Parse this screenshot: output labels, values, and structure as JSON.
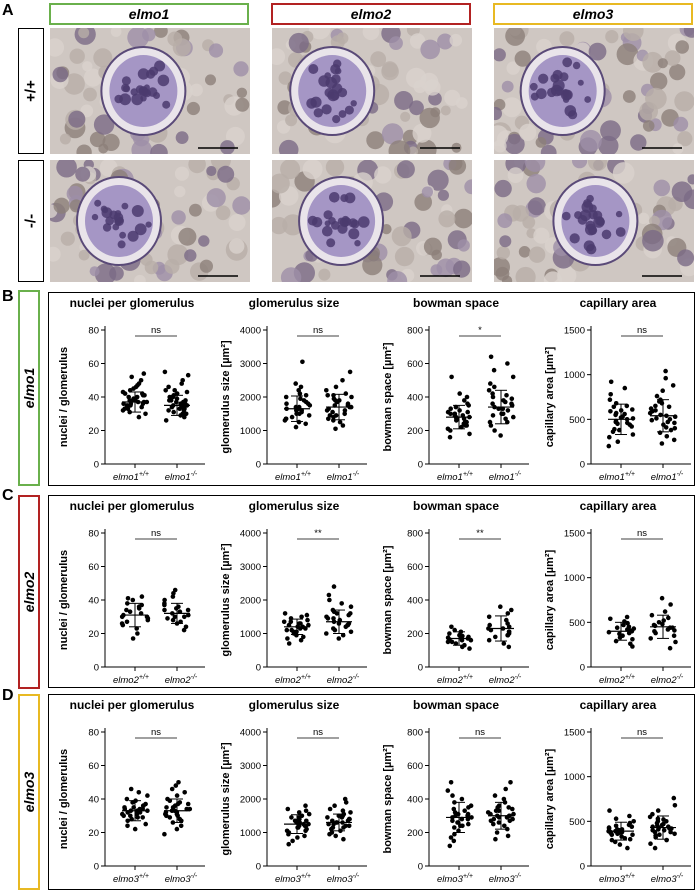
{
  "panel_labels": [
    "A",
    "B",
    "C",
    "D"
  ],
  "genes": [
    {
      "name": "elmo1",
      "color": "#6ab04c"
    },
    {
      "name": "elmo2",
      "color": "#b22222"
    },
    {
      "name": "elmo3",
      "color": "#e8b923"
    }
  ],
  "genotypes": [
    "+/+",
    "-/-"
  ],
  "chart_titles": [
    "nuclei per glomerulus",
    "glomerulus size",
    "bowman space",
    "capillary area"
  ],
  "chart_data": [
    {
      "type": "scatter",
      "gene": "elmo1",
      "title": "nuclei per glomerulus",
      "ylabel": "nuclei / glomerulus",
      "ylim": [
        0,
        80
      ],
      "yticks": [
        0,
        20,
        40,
        60,
        80
      ],
      "sig": "ns",
      "categories": [
        {
          "label": "elmo1",
          "sup": "+/+"
        },
        {
          "label": "elmo1",
          "sup": "-/-"
        }
      ],
      "series": [
        {
          "mean": 37,
          "sd": 6,
          "values": [
            28,
            30,
            31,
            33,
            33,
            34,
            35,
            35,
            36,
            36,
            37,
            37,
            37,
            38,
            38,
            39,
            39,
            40,
            40,
            41,
            42,
            42,
            43,
            44,
            45,
            46,
            47,
            48,
            50,
            52,
            54,
            32,
            36,
            38,
            41
          ]
        },
        {
          "mean": 35,
          "sd": 6,
          "values": [
            26,
            28,
            29,
            30,
            31,
            32,
            33,
            33,
            34,
            34,
            35,
            35,
            36,
            36,
            37,
            37,
            38,
            38,
            39,
            40,
            41,
            42,
            43,
            44,
            46,
            48,
            50,
            53,
            55,
            30,
            32,
            35,
            38,
            40,
            44
          ]
        }
      ]
    },
    {
      "type": "scatter",
      "gene": "elmo1",
      "title": "glomerulus size",
      "ylabel": "glomerulus size [µm²]",
      "ylim": [
        0,
        4000
      ],
      "yticks": [
        0,
        1000,
        2000,
        3000,
        4000
      ],
      "sig": "ns",
      "categories": [
        {
          "label": "elmo1",
          "sup": "+/+"
        },
        {
          "label": "elmo1",
          "sup": "-/-"
        }
      ],
      "series": [
        {
          "mean": 1650,
          "sd": 380,
          "values": [
            1100,
            1200,
            1250,
            1300,
            1350,
            1400,
            1450,
            1500,
            1550,
            1600,
            1600,
            1650,
            1700,
            1700,
            1750,
            1800,
            1850,
            1900,
            1950,
            2000,
            2050,
            2100,
            2200,
            2300,
            2400,
            3050,
            1500,
            1650,
            1800,
            1350
          ]
        },
        {
          "mean": 1700,
          "sd": 380,
          "values": [
            1050,
            1150,
            1250,
            1300,
            1400,
            1450,
            1500,
            1550,
            1600,
            1650,
            1700,
            1700,
            1750,
            1800,
            1850,
            1900,
            1950,
            2000,
            2050,
            2100,
            2200,
            2300,
            2500,
            2750,
            1600,
            1750,
            1450,
            1900,
            2050,
            1350
          ]
        }
      ]
    },
    {
      "type": "scatter",
      "gene": "elmo1",
      "title": "bowman space",
      "ylabel": "bowman space [µm²]",
      "ylim": [
        0,
        800
      ],
      "yticks": [
        0,
        200,
        400,
        600,
        800
      ],
      "sig": "*",
      "categories": [
        {
          "label": "elmo1",
          "sup": "+/+"
        },
        {
          "label": "elmo1",
          "sup": "-/-"
        }
      ],
      "series": [
        {
          "mean": 280,
          "sd": 70,
          "values": [
            160,
            180,
            200,
            210,
            220,
            230,
            240,
            250,
            260,
            270,
            280,
            280,
            290,
            300,
            300,
            310,
            320,
            330,
            340,
            350,
            360,
            380,
            400,
            420,
            520,
            250,
            270,
            290,
            310,
            230
          ]
        },
        {
          "mean": 340,
          "sd": 100,
          "values": [
            170,
            200,
            230,
            250,
            270,
            290,
            300,
            320,
            330,
            340,
            350,
            360,
            370,
            380,
            390,
            400,
            420,
            440,
            460,
            480,
            520,
            560,
            600,
            640,
            300,
            330,
            360,
            410,
            280,
            250
          ]
        }
      ]
    },
    {
      "type": "scatter",
      "gene": "elmo1",
      "title": "capillary area",
      "ylabel": "capillary area [µm²]",
      "ylim": [
        0,
        1500
      ],
      "yticks": [
        0,
        500,
        1000,
        1500
      ],
      "sig": "ns",
      "categories": [
        {
          "label": "elmo1",
          "sup": "+/+"
        },
        {
          "label": "elmo1",
          "sup": "-/-"
        }
      ],
      "series": [
        {
          "mean": 500,
          "sd": 170,
          "values": [
            200,
            250,
            300,
            330,
            360,
            390,
            420,
            440,
            460,
            480,
            500,
            510,
            530,
            550,
            570,
            590,
            610,
            640,
            680,
            720,
            780,
            850,
            920,
            450,
            520,
            600,
            380,
            470,
            560,
            650
          ]
        },
        {
          "mean": 540,
          "sd": 180,
          "values": [
            230,
            270,
            310,
            350,
            380,
            410,
            440,
            470,
            490,
            510,
            530,
            550,
            570,
            590,
            620,
            650,
            680,
            720,
            760,
            820,
            880,
            960,
            1040,
            460,
            540,
            600,
            400,
            500,
            640,
            700
          ]
        }
      ]
    },
    {
      "type": "scatter",
      "gene": "elmo2",
      "title": "nuclei per glomerulus",
      "ylabel": "nuclei / glomerulus",
      "ylim": [
        0,
        80
      ],
      "yticks": [
        0,
        20,
        40,
        60,
        80
      ],
      "sig": "ns",
      "categories": [
        {
          "label": "elmo2",
          "sup": "+/+"
        },
        {
          "label": "elmo2",
          "sup": "-/-"
        }
      ],
      "series": [
        {
          "mean": 31,
          "sd": 7,
          "values": [
            17,
            20,
            23,
            25,
            27,
            28,
            29,
            30,
            31,
            32,
            33,
            34,
            35,
            36,
            37,
            38,
            40,
            41,
            42,
            30,
            26
          ]
        },
        {
          "mean": 32,
          "sd": 6,
          "values": [
            22,
            24,
            26,
            27,
            28,
            29,
            30,
            31,
            32,
            33,
            34,
            35,
            36,
            37,
            38,
            40,
            42,
            44,
            46,
            30,
            34
          ]
        }
      ]
    },
    {
      "type": "scatter",
      "gene": "elmo2",
      "title": "glomerulus size",
      "ylabel": "glomerulus size [µm²]",
      "ylim": [
        0,
        4000
      ],
      "yticks": [
        0,
        1000,
        2000,
        3000,
        4000
      ],
      "sig": "**",
      "categories": [
        {
          "label": "elmo2",
          "sup": "+/+"
        },
        {
          "label": "elmo2",
          "sup": "-/-"
        }
      ],
      "series": [
        {
          "mean": 1200,
          "sd": 230,
          "values": [
            700,
            800,
            850,
            900,
            950,
            1000,
            1050,
            1100,
            1100,
            1150,
            1200,
            1200,
            1250,
            1300,
            1300,
            1350,
            1400,
            1450,
            1500,
            1550,
            1600,
            1150,
            1250,
            1050,
            1350
          ]
        },
        {
          "mean": 1350,
          "sd": 350,
          "values": [
            850,
            950,
            1000,
            1050,
            1100,
            1150,
            1200,
            1250,
            1300,
            1350,
            1400,
            1450,
            1500,
            1550,
            1600,
            1650,
            1700,
            1800,
            1900,
            2000,
            2150,
            2400,
            1300,
            1450,
            1250,
            1600
          ]
        }
      ]
    },
    {
      "type": "scatter",
      "gene": "elmo2",
      "title": "bowman space",
      "ylabel": "bowman space [µm²]",
      "ylim": [
        0,
        800
      ],
      "yticks": [
        0,
        200,
        400,
        600,
        800
      ],
      "sig": "**",
      "categories": [
        {
          "label": "elmo2",
          "sup": "+/+"
        },
        {
          "label": "elmo2",
          "sup": "-/-"
        }
      ],
      "series": [
        {
          "mean": 170,
          "sd": 40,
          "values": [
            110,
            120,
            130,
            140,
            150,
            160,
            165,
            170,
            175,
            180,
            185,
            190,
            200,
            210,
            220,
            240,
            170,
            160,
            150,
            180
          ]
        },
        {
          "mean": 230,
          "sd": 75,
          "values": [
            120,
            140,
            160,
            180,
            190,
            200,
            210,
            220,
            230,
            240,
            250,
            260,
            280,
            300,
            320,
            340,
            360,
            230,
            210,
            190
          ]
        }
      ]
    },
    {
      "type": "scatter",
      "gene": "elmo2",
      "title": "capillary area",
      "ylabel": "capillary area [µm²]",
      "ylim": [
        0,
        1500
      ],
      "yticks": [
        0,
        500,
        1000,
        1500
      ],
      "sig": "ns",
      "categories": [
        {
          "label": "elmo2",
          "sup": "+/+"
        },
        {
          "label": "elmo2",
          "sup": "-/-"
        }
      ],
      "series": [
        {
          "mean": 400,
          "sd": 100,
          "values": [
            230,
            260,
            290,
            310,
            330,
            350,
            370,
            390,
            400,
            410,
            430,
            450,
            470,
            490,
            510,
            540,
            560,
            380,
            420,
            440
          ]
        },
        {
          "mean": 450,
          "sd": 130,
          "values": [
            210,
            280,
            320,
            350,
            380,
            400,
            420,
            440,
            460,
            480,
            500,
            520,
            550,
            580,
            620,
            700,
            770,
            440,
            470,
            410
          ]
        }
      ]
    },
    {
      "type": "scatter",
      "gene": "elmo3",
      "title": "nuclei per glomerulus",
      "ylabel": "nuclei / glomerulus",
      "ylim": [
        0,
        80
      ],
      "yticks": [
        0,
        20,
        40,
        60,
        80
      ],
      "sig": "ns",
      "categories": [
        {
          "label": "elmo3",
          "sup": "+/+"
        },
        {
          "label": "elmo3",
          "sup": "-/-"
        }
      ],
      "series": [
        {
          "mean": 33,
          "sd": 6,
          "values": [
            22,
            24,
            25,
            27,
            28,
            29,
            30,
            30,
            31,
            32,
            32,
            33,
            33,
            34,
            34,
            35,
            35,
            36,
            37,
            38,
            39,
            40,
            42,
            44,
            46,
            31,
            33,
            36,
            29,
            34
          ]
        },
        {
          "mean": 33,
          "sd": 7,
          "values": [
            19,
            22,
            24,
            26,
            27,
            28,
            29,
            30,
            31,
            32,
            32,
            33,
            33,
            34,
            35,
            35,
            36,
            37,
            38,
            39,
            40,
            42,
            44,
            46,
            48,
            50,
            31,
            34,
            37,
            30
          ]
        }
      ]
    },
    {
      "type": "scatter",
      "gene": "elmo3",
      "title": "glomerulus size",
      "ylabel": "glomerulus size [µm²]",
      "ylim": [
        0,
        4000
      ],
      "yticks": [
        0,
        1000,
        2000,
        3000,
        4000
      ],
      "sig": "ns",
      "categories": [
        {
          "label": "elmo3",
          "sup": "+/+"
        },
        {
          "label": "elmo3",
          "sup": "-/-"
        }
      ],
      "series": [
        {
          "mean": 1250,
          "sd": 280,
          "values": [
            650,
            750,
            850,
            900,
            950,
            1000,
            1050,
            1100,
            1150,
            1200,
            1200,
            1250,
            1300,
            1300,
            1350,
            1400,
            1450,
            1500,
            1550,
            1600,
            1650,
            1700,
            1800,
            1250,
            1150,
            1350,
            1050,
            1450,
            1200,
            1300
          ]
        },
        {
          "mean": 1300,
          "sd": 250,
          "values": [
            800,
            900,
            950,
            1000,
            1050,
            1100,
            1150,
            1200,
            1250,
            1300,
            1300,
            1350,
            1400,
            1400,
            1450,
            1500,
            1550,
            1600,
            1650,
            1700,
            1800,
            1900,
            2000,
            1300,
            1250,
            1350,
            1150,
            1450,
            1200,
            1500
          ]
        }
      ]
    },
    {
      "type": "scatter",
      "gene": "elmo3",
      "title": "bowman space",
      "ylabel": "bowman space [µm²]",
      "ylim": [
        0,
        800
      ],
      "yticks": [
        0,
        200,
        400,
        600,
        800
      ],
      "sig": "ns",
      "categories": [
        {
          "label": "elmo3",
          "sup": "+/+"
        },
        {
          "label": "elmo3",
          "sup": "-/-"
        }
      ],
      "series": [
        {
          "mean": 290,
          "sd": 90,
          "values": [
            120,
            150,
            170,
            190,
            210,
            230,
            240,
            250,
            260,
            270,
            280,
            290,
            300,
            310,
            320,
            330,
            340,
            360,
            380,
            400,
            420,
            450,
            500,
            280,
            300,
            260,
            310,
            240,
            350,
            290
          ]
        },
        {
          "mean": 300,
          "sd": 80,
          "values": [
            160,
            180,
            200,
            220,
            240,
            250,
            260,
            270,
            280,
            290,
            300,
            300,
            310,
            320,
            330,
            340,
            350,
            360,
            380,
            400,
            420,
            460,
            500,
            300,
            290,
            310,
            270,
            330,
            350,
            280
          ]
        }
      ]
    },
    {
      "type": "scatter",
      "gene": "elmo3",
      "title": "capillary area",
      "ylabel": "capillary area [µm²]",
      "ylim": [
        0,
        1500
      ],
      "yticks": [
        0,
        500,
        1000,
        1500
      ],
      "sig": "ns",
      "categories": [
        {
          "label": "elmo3",
          "sup": "+/+"
        },
        {
          "label": "elmo3",
          "sup": "-/-"
        }
      ],
      "series": [
        {
          "mean": 390,
          "sd": 100,
          "values": [
            200,
            240,
            270,
            290,
            310,
            330,
            350,
            360,
            370,
            380,
            390,
            400,
            410,
            420,
            440,
            460,
            480,
            500,
            530,
            560,
            620,
            390,
            370,
            410,
            350,
            430,
            300,
            450,
            380,
            400
          ]
        },
        {
          "mean": 430,
          "sd": 130,
          "values": [
            200,
            250,
            290,
            320,
            340,
            360,
            380,
            400,
            420,
            430,
            440,
            460,
            480,
            500,
            520,
            550,
            580,
            620,
            680,
            760,
            450,
            400,
            470,
            420,
            380,
            500,
            350,
            530,
            440,
            410
          ]
        }
      ]
    }
  ]
}
